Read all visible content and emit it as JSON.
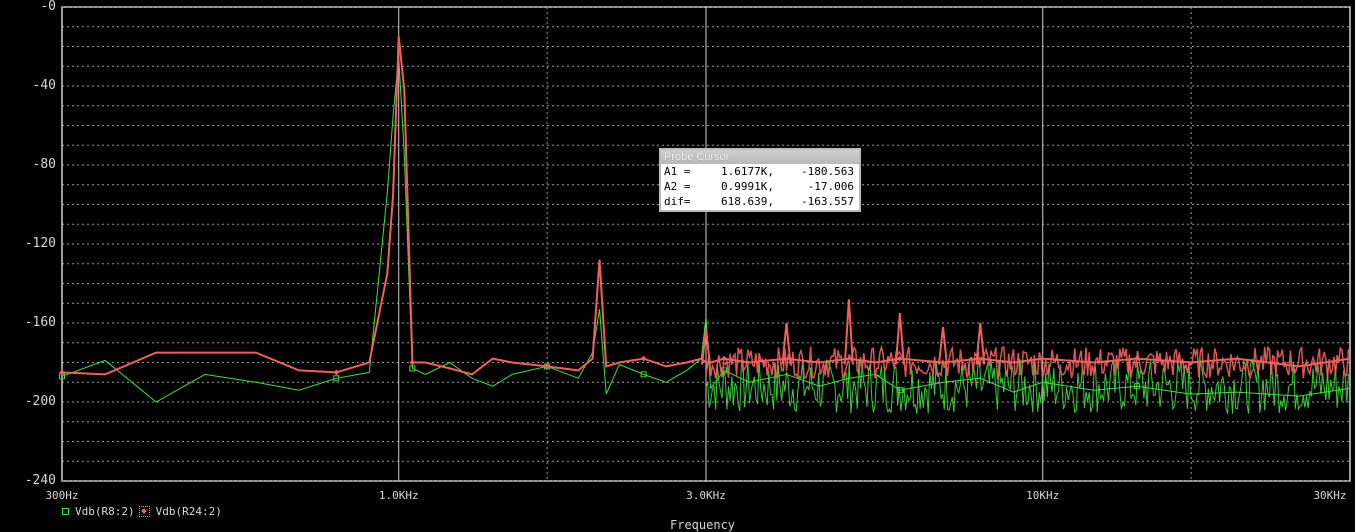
{
  "chart_data": {
    "type": "line",
    "title": "",
    "xlabel": "Frequency",
    "ylabel": "",
    "xscale": "log",
    "xlim": [
      300,
      30000
    ],
    "ylim": [
      -240,
      0
    ],
    "grid": true,
    "x_ticks": [
      {
        "value": 300,
        "label": "300Hz"
      },
      {
        "value": 1000,
        "label": "1.0KHz"
      },
      {
        "value": 3000,
        "label": "3.0KHz"
      },
      {
        "value": 10000,
        "label": "10KHz"
      },
      {
        "value": 30000,
        "label": "30KHz"
      }
    ],
    "y_ticks": [
      {
        "value": 0,
        "label": "-0"
      },
      {
        "value": -40,
        "label": "-40"
      },
      {
        "value": -80,
        "label": "-80"
      },
      {
        "value": -120,
        "label": "-120"
      },
      {
        "value": -160,
        "label": "-160"
      },
      {
        "value": -200,
        "label": "-200"
      },
      {
        "value": -240,
        "label": "-240"
      }
    ],
    "series": [
      {
        "name": "Vdb(R8:2)",
        "color": "#3fe03f",
        "marker": "square",
        "x": [
          300,
          350,
          420,
          500,
          600,
          700,
          800,
          900,
          960,
          980,
          1000,
          1020,
          1050,
          1100,
          1200,
          1300,
          1400,
          1500,
          1700,
          1900,
          2000,
          2050,
          2100,
          2200,
          2400,
          2600,
          2800,
          2950,
          3000,
          3050,
          3200,
          3500,
          4000,
          4500,
          5000,
          5500,
          6000,
          7000,
          8000,
          9000,
          10000,
          12000,
          14000,
          17000,
          20000,
          25000,
          30000
        ],
        "values": [
          -187,
          -179,
          -200,
          -186,
          -190,
          -194,
          -188,
          -185,
          -94,
          -55,
          -25,
          -75,
          -183,
          -186,
          -180,
          -188,
          -192,
          -186,
          -182,
          -188,
          -175,
          -153,
          -196,
          -181,
          -186,
          -190,
          -184,
          -178,
          -157,
          -193,
          -184,
          -190,
          -186,
          -192,
          -188,
          -186,
          -194,
          -190,
          -188,
          -195,
          -190,
          -194,
          -192,
          -196,
          -195,
          -197,
          -193
        ]
      },
      {
        "name": "Vdb(R24:2)",
        "color": "#f06060",
        "marker": "diamond",
        "x": [
          300,
          350,
          420,
          500,
          600,
          700,
          800,
          900,
          960,
          980,
          1000,
          1020,
          1050,
          1100,
          1200,
          1300,
          1400,
          1500,
          1700,
          1900,
          2000,
          2050,
          2100,
          2200,
          2400,
          2600,
          2800,
          2950,
          3000,
          3050,
          3200,
          3500,
          4000,
          4500,
          5000,
          5500,
          6000,
          7000,
          8000,
          9000,
          10000,
          12000,
          14000,
          17000,
          20000,
          25000,
          30000
        ],
        "values": [
          -185,
          -186,
          -175,
          -175,
          -175,
          -184,
          -185,
          -180,
          -135,
          -95,
          -15,
          -42,
          -180,
          -180,
          -183,
          -186,
          -178,
          -180,
          -182,
          -184,
          -178,
          -128,
          -182,
          -180,
          -178,
          -182,
          -180,
          -178,
          -180,
          -180,
          -178,
          -180,
          -178,
          -180,
          -178,
          -180,
          -178,
          -180,
          -178,
          -180,
          -178,
          -180,
          -178,
          -180,
          -178,
          -182,
          -178
        ]
      }
    ],
    "spikes_red": [
      {
        "x": 3000,
        "y": -163
      },
      {
        "x": 4000,
        "y": -160
      },
      {
        "x": 5000,
        "y": -148
      },
      {
        "x": 6000,
        "y": -155
      },
      {
        "x": 7000,
        "y": -162
      },
      {
        "x": 8000,
        "y": -160
      }
    ]
  },
  "legend": {
    "green_label": "Vdb(R8:2)",
    "red_label": "Vdb(R24:2)"
  },
  "probe_cursor": {
    "title": "Probe Cursor",
    "rows": [
      {
        "label": "A1 =",
        "a": "1.6177K,",
        "b": "-180.563"
      },
      {
        "label": "A2 =",
        "a": "0.9991K,",
        "b": "-17.006"
      },
      {
        "label": "dif=",
        "a": "618.639,",
        "b": "-163.557"
      }
    ]
  }
}
